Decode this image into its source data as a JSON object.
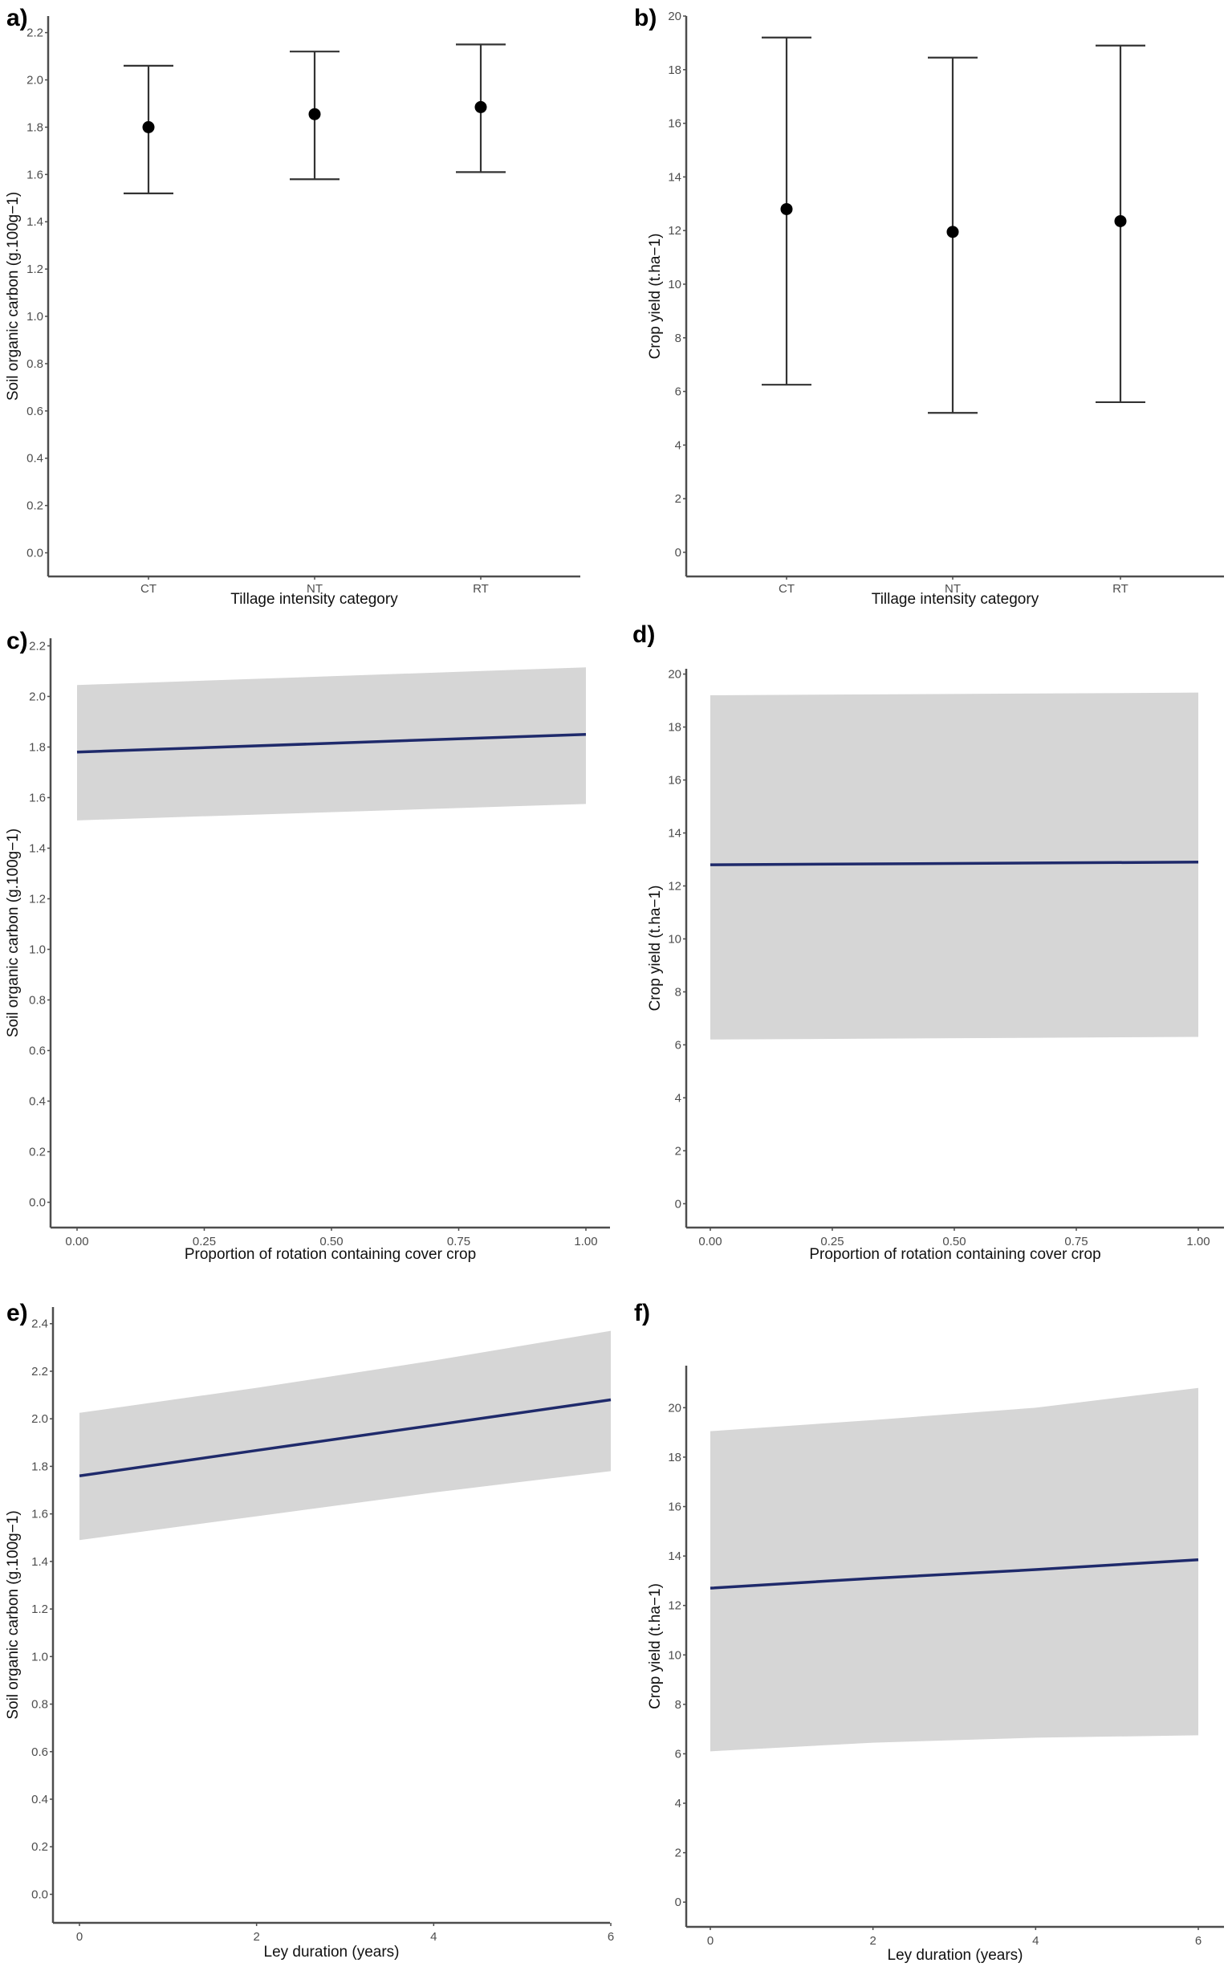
{
  "figure_colors": {
    "ribbon": "#d6d6d6",
    "fit_line": "#1f2a6b",
    "point": "#000000",
    "axis": "#4d4d4d"
  },
  "chart_data": [
    {
      "id": "a",
      "panel_label": "a)",
      "type": "scatter",
      "subtype": "point-errorbar",
      "xlabel": "Tillage intensity category",
      "ylabel": "Soil organic carbon (g.100g−1)",
      "categories": [
        "CT",
        "NT",
        "RT"
      ],
      "values": [
        1.8,
        1.855,
        1.885
      ],
      "lower": [
        1.52,
        1.58,
        1.61
      ],
      "upper": [
        2.06,
        2.12,
        2.15
      ],
      "yticks": [
        "0.0",
        "0.2",
        "0.4",
        "0.6",
        "0.8",
        "1.0",
        "1.2",
        "1.4",
        "1.6",
        "1.8",
        "2.0",
        "2.2"
      ],
      "ylim": [
        -0.1,
        2.27
      ],
      "grid": false
    },
    {
      "id": "b",
      "panel_label": "b)",
      "type": "scatter",
      "subtype": "point-errorbar",
      "xlabel": "Tillage intensity category",
      "ylabel": "Crop yield (t.ha−1)",
      "categories": [
        "CT",
        "NT",
        "RT"
      ],
      "values": [
        12.8,
        11.95,
        12.35
      ],
      "lower": [
        6.25,
        5.2,
        5.6
      ],
      "upper": [
        19.2,
        18.45,
        18.9
      ],
      "yticks": [
        "0",
        "2",
        "4",
        "6",
        "8",
        "10",
        "12",
        "14",
        "16",
        "18",
        "20"
      ],
      "ylim": [
        -0.9,
        20.0
      ],
      "grid": false
    },
    {
      "id": "c",
      "panel_label": "c)",
      "type": "line",
      "subtype": "fit-with-ribbon",
      "xlabel": "Proportion of rotation containing cover crop",
      "ylabel": "Soil organic carbon (g.100g−1)",
      "x": [
        0.0,
        1.0
      ],
      "fit": [
        1.78,
        1.85
      ],
      "lower": [
        1.51,
        1.575
      ],
      "upper": [
        2.045,
        2.115
      ],
      "xticks": [
        "0.00",
        "0.25",
        "0.50",
        "0.75",
        "1.00"
      ],
      "xtick_values": [
        0.0,
        0.25,
        0.5,
        0.75,
        1.0
      ],
      "yticks": [
        "0.0",
        "0.2",
        "0.4",
        "0.6",
        "0.8",
        "1.0",
        "1.2",
        "1.4",
        "1.6",
        "1.8",
        "2.0",
        "2.2"
      ],
      "xlim": [
        -0.05,
        1.05
      ],
      "ylim": [
        -0.1,
        2.23
      ],
      "grid": false
    },
    {
      "id": "d",
      "panel_label": "d)",
      "type": "line",
      "subtype": "fit-with-ribbon",
      "xlabel": "Proportion of rotation containing cover crop",
      "ylabel": "Crop yield (t.ha−1)",
      "x": [
        0.0,
        1.0
      ],
      "fit": [
        12.8,
        12.9
      ],
      "lower": [
        6.2,
        6.3
      ],
      "upper": [
        19.2,
        19.3
      ],
      "xticks": [
        "0.00",
        "0.25",
        "0.50",
        "0.75",
        "1.00"
      ],
      "xtick_values": [
        0.0,
        0.25,
        0.5,
        0.75,
        1.0
      ],
      "yticks": [
        "0",
        "2",
        "4",
        "6",
        "8",
        "10",
        "12",
        "14",
        "16",
        "18",
        "20"
      ],
      "xlim": [
        -0.05,
        1.05
      ],
      "ylim": [
        -0.9,
        20.2
      ],
      "grid": false
    },
    {
      "id": "e",
      "panel_label": "e)",
      "type": "line",
      "subtype": "fit-with-ribbon",
      "xlabel": "Ley duration (years)",
      "ylabel": "Soil organic carbon (g.100g−1)",
      "x": [
        0,
        2,
        4,
        6
      ],
      "fit": [
        1.76,
        1.867,
        1.973,
        2.08
      ],
      "lower": [
        1.49,
        1.59,
        1.69,
        1.78
      ],
      "upper": [
        2.025,
        2.13,
        2.245,
        2.37
      ],
      "xticks": [
        "0",
        "2",
        "4",
        "6"
      ],
      "xtick_values": [
        0,
        2,
        4,
        6
      ],
      "yticks": [
        "0.0",
        "0.2",
        "0.4",
        "0.6",
        "0.8",
        "1.0",
        "1.2",
        "1.4",
        "1.6",
        "1.8",
        "2.0",
        "2.2",
        "2.4"
      ],
      "xlim": [
        -0.3,
        6.3
      ],
      "ylim": [
        -0.12,
        2.47
      ],
      "grid": false
    },
    {
      "id": "f",
      "panel_label": "f)",
      "type": "line",
      "subtype": "fit-with-ribbon",
      "xlabel": "Ley duration (years)",
      "ylabel": "Crop yield (t.ha−1)",
      "x": [
        0,
        2,
        4,
        6
      ],
      "fit": [
        12.7,
        13.1,
        13.45,
        13.85
      ],
      "lower": [
        6.1,
        6.45,
        6.65,
        6.75
      ],
      "upper": [
        19.05,
        19.5,
        20.0,
        20.8
      ],
      "xticks": [
        "0",
        "2",
        "4",
        "6"
      ],
      "xtick_values": [
        0,
        2,
        4,
        6
      ],
      "yticks": [
        "0",
        "2",
        "4",
        "6",
        "8",
        "10",
        "12",
        "14",
        "16",
        "18",
        "20"
      ],
      "xlim": [
        -0.3,
        6.3
      ],
      "ylim": [
        -1.0,
        21.7
      ],
      "grid": false
    }
  ]
}
